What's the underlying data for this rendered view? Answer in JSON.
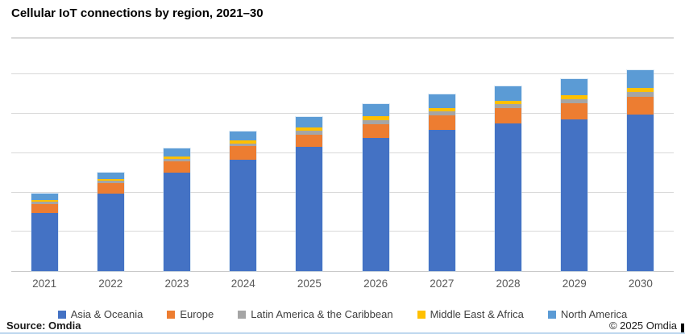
{
  "page": {
    "title": "Cellular IoT connections by region, 2021–30",
    "source": "Source: Omdia",
    "copyright": "© 2025 Omdia"
  },
  "colors": {
    "asia_oceania": "#4472C4",
    "europe": "#ED7D31",
    "latin_america_caribbean": "#A5A5A5",
    "middle_east_africa": "#FFC000",
    "north_america": "#5B9BD5",
    "gridline": "#D9D9D9",
    "axis_text": "#595959",
    "legend_text": "#404040",
    "bottom_rule": "#BDD7EE"
  },
  "chart_data": {
    "type": "bar",
    "stacked": true,
    "title": "Cellular IoT connections by region, 2021–30",
    "categories": [
      "2021",
      "2022",
      "2023",
      "2024",
      "2025",
      "2026",
      "2027",
      "2028",
      "2029",
      "2030"
    ],
    "series": [
      {
        "name": "Asia & Oceania",
        "color": "#4472C4",
        "values": [
          1.48,
          1.97,
          2.5,
          2.84,
          3.15,
          3.39,
          3.59,
          3.76,
          3.86,
          3.97
        ]
      },
      {
        "name": "Europe",
        "color": "#ED7D31",
        "values": [
          0.23,
          0.26,
          0.28,
          0.33,
          0.32,
          0.34,
          0.36,
          0.38,
          0.4,
          0.46
        ]
      },
      {
        "name": "Latin America & the Caribbean",
        "color": "#A5A5A5",
        "values": [
          0.05,
          0.06,
          0.07,
          0.08,
          0.09,
          0.1,
          0.1,
          0.1,
          0.11,
          0.12
        ]
      },
      {
        "name": "Middle East & Africa",
        "color": "#FFC000",
        "values": [
          0.05,
          0.05,
          0.06,
          0.08,
          0.09,
          0.1,
          0.09,
          0.09,
          0.1,
          0.1
        ]
      },
      {
        "name": "North America",
        "color": "#5B9BD5",
        "values": [
          0.16,
          0.16,
          0.2,
          0.21,
          0.27,
          0.32,
          0.35,
          0.37,
          0.42,
          0.46
        ]
      }
    ],
    "xlabel": "",
    "ylabel": "",
    "ylim": [
      0,
      5.66
    ],
    "gridline_step": 1,
    "y_axis_tick_labels": "none (unlabeled axis)",
    "legend_position": "bottom",
    "note": "Y-axis has no tick labels; values estimated in gridline units (1 unit = 1 gridline spacing)"
  }
}
